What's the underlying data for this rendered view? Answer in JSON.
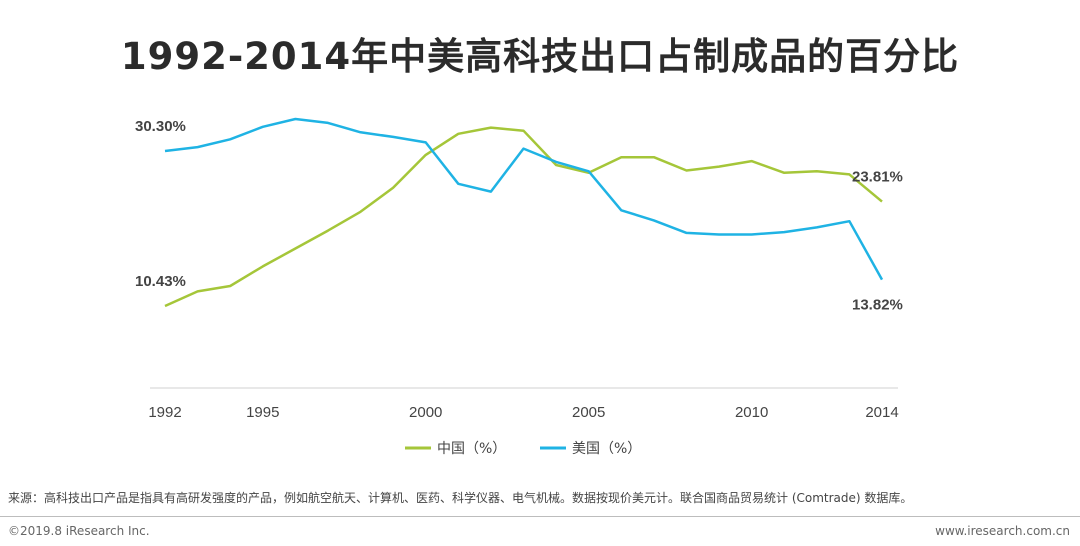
{
  "title": "1992-2014年中美高科技出口占制成品的百分比",
  "chart_data": {
    "type": "line",
    "title": "1992-2014年中美高科技出口占制成品的百分比",
    "x": [
      1992,
      1993,
      1994,
      1995,
      1996,
      1997,
      1998,
      1999,
      2000,
      2001,
      2002,
      2003,
      2004,
      2005,
      2006,
      2007,
      2008,
      2009,
      2010,
      2011,
      2012,
      2013,
      2014
    ],
    "x_tick_labels": [
      "1992",
      "1995",
      "2000",
      "2005",
      "2010",
      "2014"
    ],
    "x_ticks": [
      1992,
      1995,
      2000,
      2005,
      2010,
      2014
    ],
    "xlim": [
      1992,
      2014
    ],
    "ylim": [
      0,
      34
    ],
    "grid": false,
    "legend_position": "bottom",
    "series": [
      {
        "name": "中国（%）",
        "color": "#a5c639",
        "values": [
          10.43,
          12.3,
          13.0,
          15.5,
          17.8,
          20.1,
          22.5,
          25.6,
          29.8,
          32.5,
          33.3,
          32.9,
          28.5,
          27.5,
          29.5,
          29.5,
          27.8,
          28.3,
          29.0,
          27.5,
          27.7,
          27.3,
          23.81
        ],
        "end_label": "23.81%",
        "start_label": "10.43%"
      },
      {
        "name": "美国（%）",
        "color": "#1fb3e4",
        "values": [
          30.3,
          30.8,
          31.8,
          33.4,
          34.4,
          33.9,
          32.7,
          32.1,
          31.4,
          26.1,
          25.1,
          30.6,
          28.9,
          27.7,
          22.7,
          21.4,
          19.8,
          19.6,
          19.6,
          19.9,
          20.5,
          21.3,
          13.82
        ],
        "start_label": "30.30%",
        "end_label": "13.82%"
      }
    ]
  },
  "source_text": "来源：高科技出口产品是指具有高研发强度的产品，例如航空航天、计算机、医药、科学仪器、电气机械。数据按现价美元计。联合国商品贸易统计 (Comtrade) 数据库。",
  "copyright": "©2019.8 iResearch Inc.",
  "website": "www.iresearch.com.cn"
}
